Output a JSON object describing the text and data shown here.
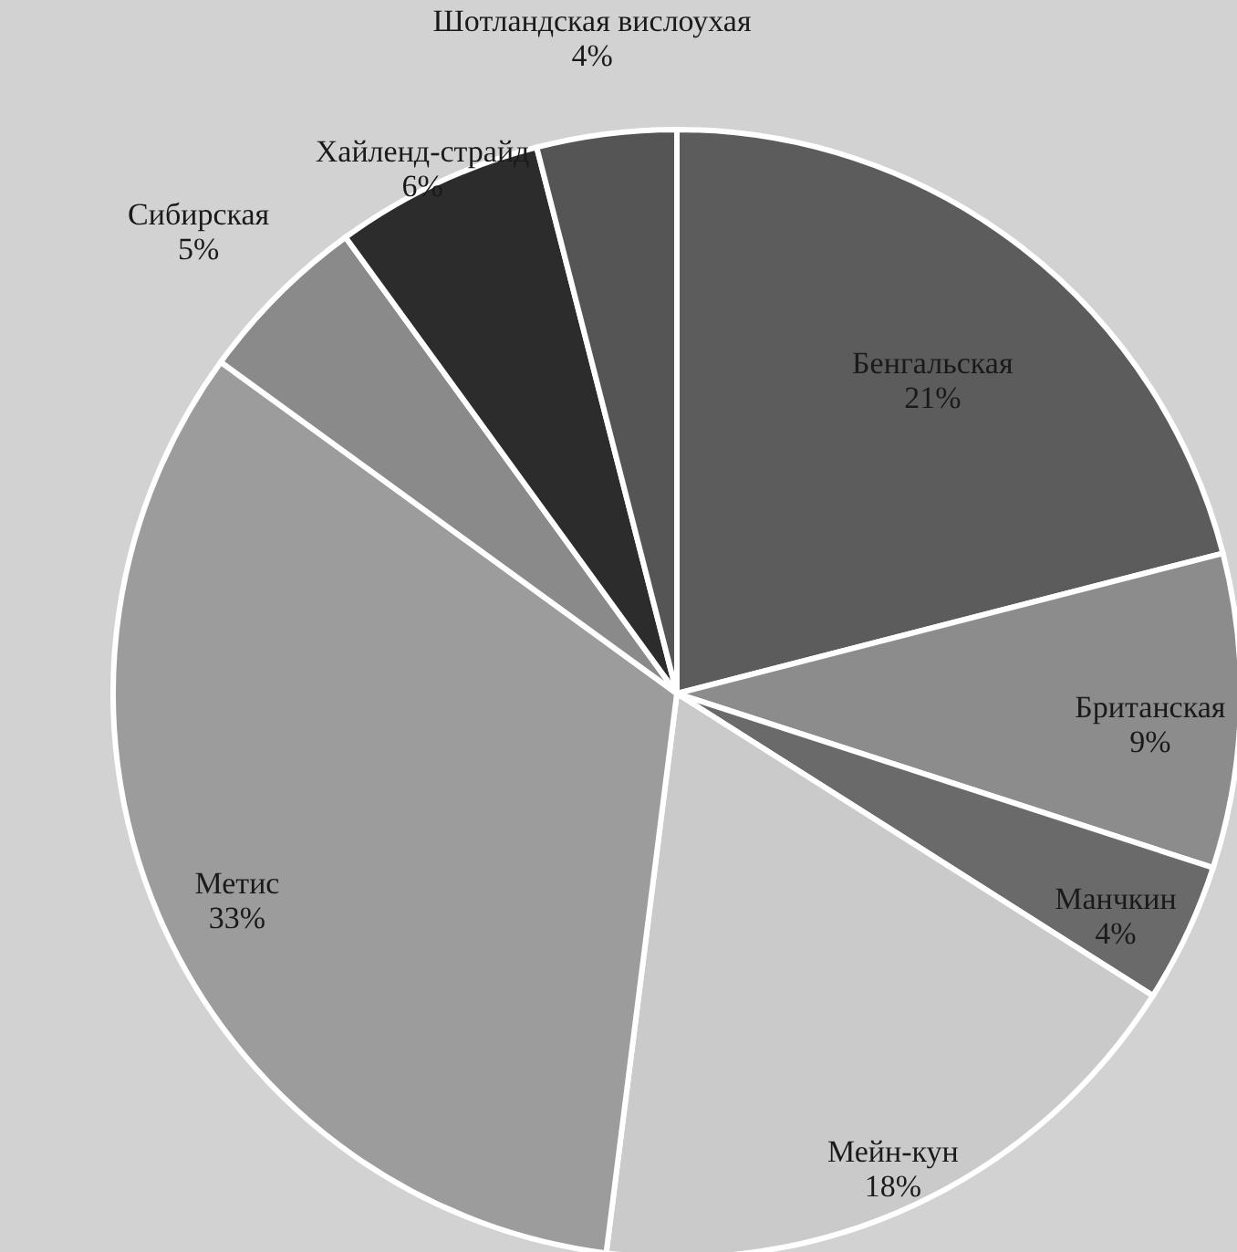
{
  "chart_data": {
    "type": "pie",
    "categories": [
      "Бенгальская",
      "Британская",
      "Манчкин",
      "Мейн-кун",
      "Метис",
      "Сибирская",
      "Хайленд-страйд",
      "Шотландская вислоухая"
    ],
    "values": [
      21,
      9,
      4,
      18,
      33,
      5,
      6,
      4
    ],
    "value_labels": [
      "21%",
      "9%",
      "4%",
      "18%",
      "33%",
      "5%",
      "6%",
      "4%"
    ],
    "colors": [
      "#5c5c5c",
      "#8c8c8c",
      "#6a6a6a",
      "#cacaca",
      "#9c9c9c",
      "#8a8a8a",
      "#2c2c2c",
      "#555555"
    ]
  }
}
